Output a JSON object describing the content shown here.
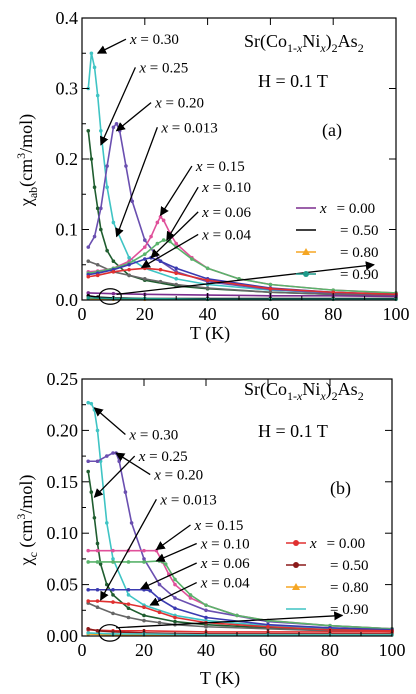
{
  "chart_data": [
    {
      "panel": "(a)",
      "type": "scatter",
      "formula": "Sr(Co1-xNix)2As2",
      "field": "H = 0.1 T",
      "xlabel": "T (K)",
      "ylabel": "χab(cm3/mol)",
      "xlim": [
        0,
        100
      ],
      "ylim": [
        0,
        0.4
      ],
      "xticks": [
        0,
        20,
        40,
        60,
        80,
        100
      ],
      "yticks": [
        0.0,
        0.1,
        0.2,
        0.3,
        0.4
      ],
      "yticklabels": [
        "0.0",
        "0.1",
        "0.2",
        "0.3",
        "0.4"
      ],
      "grid": false,
      "legend_position": "right",
      "legend": [
        {
          "label": "x  = 0.00",
          "color": "#7b2d8e",
          "marker": "line"
        },
        {
          "label": "= 0.50",
          "color": "#000000",
          "marker": "line"
        },
        {
          "label": "= 0.80",
          "color": "#f5a623",
          "marker": "triangle"
        },
        {
          "label": "= 0.90",
          "color": "#1e9a8a",
          "marker": "circle"
        }
      ],
      "series": [
        {
          "name": "x = 0.30",
          "color": "#3fc4c4",
          "x": [
            2,
            3,
            4,
            5,
            6,
            8,
            10,
            15,
            20,
            30,
            40,
            60,
            80,
            100
          ],
          "y": [
            0.3,
            0.35,
            0.33,
            0.29,
            0.24,
            0.16,
            0.11,
            0.06,
            0.045,
            0.03,
            0.022,
            0.014,
            0.01,
            0.008
          ]
        },
        {
          "name": "x = 0.25",
          "color": "#1f5d2f",
          "x": [
            2,
            3,
            4,
            5,
            6,
            8,
            10,
            15,
            20,
            30,
            40,
            60,
            80,
            100
          ],
          "y": [
            0.24,
            0.2,
            0.16,
            0.13,
            0.1,
            0.07,
            0.055,
            0.035,
            0.028,
            0.02,
            0.016,
            0.011,
            0.008,
            0.006
          ]
        },
        {
          "name": "x = 0.20",
          "color": "#6a4fb0",
          "x": [
            2,
            4,
            6,
            8,
            10,
            11,
            12,
            14,
            16,
            20,
            25,
            30,
            40,
            60,
            80,
            100
          ],
          "y": [
            0.075,
            0.09,
            0.13,
            0.19,
            0.245,
            0.25,
            0.24,
            0.19,
            0.14,
            0.085,
            0.055,
            0.04,
            0.026,
            0.015,
            0.01,
            0.008
          ]
        },
        {
          "name": "x = 0.013",
          "color": "#666666",
          "x": [
            2,
            5,
            10,
            15,
            20,
            25,
            30,
            40,
            60,
            80,
            100
          ],
          "y": [
            0.055,
            0.05,
            0.04,
            0.035,
            0.03,
            0.026,
            0.022,
            0.017,
            0.011,
            0.008,
            0.006
          ]
        },
        {
          "name": "x = 0.15",
          "color": "#e0509a",
          "x": [
            2,
            5,
            10,
            15,
            20,
            22,
            24,
            25,
            26,
            28,
            30,
            35,
            40,
            50,
            60,
            80,
            100
          ],
          "y": [
            0.04,
            0.041,
            0.045,
            0.055,
            0.075,
            0.09,
            0.11,
            0.118,
            0.113,
            0.095,
            0.08,
            0.06,
            0.045,
            0.03,
            0.022,
            0.014,
            0.01
          ]
        },
        {
          "name": "x = 0.10",
          "color": "#59b36b",
          "x": [
            2,
            5,
            10,
            15,
            20,
            24,
            26,
            28,
            30,
            35,
            40,
            50,
            60,
            80,
            100
          ],
          "y": [
            0.038,
            0.04,
            0.045,
            0.052,
            0.065,
            0.08,
            0.085,
            0.083,
            0.075,
            0.058,
            0.045,
            0.03,
            0.022,
            0.014,
            0.01
          ]
        },
        {
          "name": "x = 0.06",
          "color": "#3a3ab0",
          "x": [
            2,
            5,
            10,
            15,
            20,
            22,
            25,
            30,
            40,
            60,
            80,
            100
          ],
          "y": [
            0.036,
            0.038,
            0.043,
            0.05,
            0.058,
            0.06,
            0.055,
            0.045,
            0.03,
            0.017,
            0.011,
            0.008
          ]
        },
        {
          "name": "x = 0.04",
          "color": "#e03030",
          "x": [
            2,
            5,
            10,
            15,
            20,
            25,
            30,
            40,
            60,
            80,
            100
          ],
          "y": [
            0.033,
            0.035,
            0.04,
            0.043,
            0.045,
            0.043,
            0.038,
            0.028,
            0.016,
            0.011,
            0.008
          ]
        },
        {
          "name": "x = 0.00",
          "color": "#7b2d8e",
          "x": [
            2,
            10,
            20,
            40,
            60,
            80,
            100
          ],
          "y": [
            0.01,
            0.009,
            0.008,
            0.007,
            0.006,
            0.006,
            0.005
          ]
        },
        {
          "name": "x = 0.50",
          "color": "#000000",
          "x": [
            2,
            5,
            10,
            20,
            40,
            60,
            80,
            100
          ],
          "y": [
            0.006,
            0.004,
            0.003,
            0.002,
            0.002,
            0.002,
            0.002,
            0.002
          ]
        },
        {
          "name": "x = 0.80",
          "color": "#f5a623",
          "x": [
            2,
            10,
            20,
            40,
            60,
            80,
            100
          ],
          "y": [
            0.002,
            0.001,
            0.001,
            0.001,
            0.001,
            0.001,
            0.001
          ]
        },
        {
          "name": "x = 0.90",
          "color": "#1e9a8a",
          "x": [
            2,
            10,
            20,
            40,
            60,
            80,
            100
          ],
          "y": [
            0.003,
            0.002,
            0.002,
            0.001,
            0.001,
            0.001,
            0.001
          ]
        }
      ],
      "annotations": [
        {
          "label": "x = 0.30",
          "tail": [
            14,
            0.37
          ],
          "head": [
            5,
            0.35
          ]
        },
        {
          "label": "x = 0.25",
          "tail": [
            17,
            0.33
          ],
          "head": [
            6,
            0.22
          ]
        },
        {
          "label": "x = 0.20",
          "tail": [
            22,
            0.28
          ],
          "head": [
            11,
            0.24
          ]
        },
        {
          "label": "x = 0.013",
          "tail": [
            24,
            0.245
          ],
          "head": [
            11,
            0.09
          ]
        },
        {
          "label": "x = 0.15",
          "tail": [
            35,
            0.19
          ],
          "head": [
            25,
            0.12
          ]
        },
        {
          "label": "x = 0.10",
          "tail": [
            37,
            0.16
          ],
          "head": [
            27,
            0.085
          ]
        },
        {
          "label": "x = 0.06",
          "tail": [
            37,
            0.125
          ],
          "head": [
            22,
            0.06
          ]
        },
        {
          "label": "x = 0.04",
          "tail": [
            37,
            0.093
          ],
          "head": [
            19,
            0.046
          ]
        },
        {
          "label": "",
          "tail": [
            11,
            0.008
          ],
          "head": [
            93,
            0.05
          ]
        }
      ],
      "ellipse": {
        "cx": 9,
        "cy": 0.005,
        "rx": 3.5,
        "ry": 0.011
      }
    },
    {
      "panel": "(b)",
      "type": "scatter",
      "formula": "Sr(Co1-xNix)2As2",
      "field": "H = 0.1 T",
      "xlabel": "T (K)",
      "ylabel": "χc (cm3/mol)",
      "xlim": [
        0,
        100
      ],
      "ylim": [
        0,
        0.25
      ],
      "xticks": [
        0,
        20,
        40,
        60,
        80,
        100
      ],
      "yticks": [
        0.0,
        0.05,
        0.1,
        0.15,
        0.2,
        0.25
      ],
      "yticklabels": [
        "0.00",
        "0.05",
        "0.10",
        "0.15",
        "0.20",
        "0.25"
      ],
      "grid": false,
      "legend_position": "bottom-right",
      "legend": [
        {
          "label": "x  = 0.00",
          "color": "#e03030",
          "marker": "circle"
        },
        {
          "label": "= 0.50",
          "color": "#8b1a1a",
          "marker": "circle"
        },
        {
          "label": "= 0.80",
          "color": "#f5a623",
          "marker": "triangle"
        },
        {
          "label": "= 0.90",
          "color": "#3fc4c4",
          "marker": "line"
        }
      ],
      "series": [
        {
          "name": "x = 0.30",
          "color": "#3fc4c4",
          "x": [
            2,
            3,
            4,
            5,
            6,
            8,
            10,
            15,
            20,
            30,
            40,
            60,
            80,
            100
          ],
          "y": [
            0.227,
            0.226,
            0.22,
            0.2,
            0.17,
            0.11,
            0.075,
            0.04,
            0.03,
            0.02,
            0.015,
            0.01,
            0.007,
            0.005
          ]
        },
        {
          "name": "x = 0.25",
          "color": "#1f5d2f",
          "x": [
            2,
            3,
            4,
            5,
            6,
            8,
            10,
            15,
            20,
            30,
            40,
            60,
            80,
            100
          ],
          "y": [
            0.16,
            0.14,
            0.115,
            0.09,
            0.07,
            0.05,
            0.04,
            0.027,
            0.02,
            0.014,
            0.011,
            0.008,
            0.006,
            0.005
          ]
        },
        {
          "name": "x = 0.20",
          "color": "#6a4fb0",
          "x": [
            2,
            5,
            8,
            10,
            11,
            12,
            14,
            16,
            20,
            25,
            30,
            40,
            60,
            80,
            100
          ],
          "y": [
            0.17,
            0.17,
            0.175,
            0.178,
            0.178,
            0.17,
            0.14,
            0.11,
            0.075,
            0.05,
            0.037,
            0.025,
            0.014,
            0.01,
            0.007
          ]
        },
        {
          "name": "x = 0.013",
          "color": "#666666",
          "x": [
            2,
            5,
            10,
            15,
            20,
            25,
            30,
            40,
            60,
            80,
            100
          ],
          "y": [
            0.032,
            0.028,
            0.022,
            0.018,
            0.015,
            0.013,
            0.011,
            0.009,
            0.007,
            0.005,
            0.004
          ]
        },
        {
          "name": "x = 0.15",
          "color": "#e0509a",
          "x": [
            2,
            5,
            10,
            15,
            20,
            24,
            26,
            28,
            30,
            35,
            40,
            50,
            60,
            80,
            100
          ],
          "y": [
            0.083,
            0.083,
            0.083,
            0.083,
            0.083,
            0.083,
            0.072,
            0.06,
            0.05,
            0.037,
            0.03,
            0.02,
            0.015,
            0.01,
            0.007
          ]
        },
        {
          "name": "x = 0.10",
          "color": "#59b36b",
          "x": [
            2,
            5,
            10,
            15,
            20,
            25,
            27,
            30,
            35,
            40,
            50,
            60,
            80,
            100
          ],
          "y": [
            0.072,
            0.072,
            0.072,
            0.072,
            0.072,
            0.073,
            0.07,
            0.055,
            0.04,
            0.03,
            0.02,
            0.015,
            0.01,
            0.007
          ]
        },
        {
          "name": "x = 0.06",
          "color": "#3a3ab0",
          "x": [
            2,
            5,
            10,
            15,
            20,
            22,
            25,
            30,
            40,
            60,
            80,
            100
          ],
          "y": [
            0.045,
            0.045,
            0.045,
            0.045,
            0.045,
            0.044,
            0.036,
            0.027,
            0.018,
            0.011,
            0.008,
            0.006
          ]
        },
        {
          "name": "x = 0.04",
          "color": "#e03030",
          "x": [
            2,
            5,
            10,
            15,
            20,
            25,
            30,
            40,
            60,
            80,
            100
          ],
          "y": [
            0.034,
            0.034,
            0.033,
            0.031,
            0.028,
            0.023,
            0.018,
            0.013,
            0.009,
            0.006,
            0.005
          ]
        },
        {
          "name": "x = 0.00",
          "color": "#e03030",
          "x": [
            2,
            10,
            20,
            40,
            60,
            80,
            100
          ],
          "y": [
            0.006,
            0.005,
            0.005,
            0.004,
            0.004,
            0.004,
            0.004
          ]
        },
        {
          "name": "x = 0.50",
          "color": "#8b1a1a",
          "x": [
            2,
            5,
            10,
            20,
            40,
            60,
            80,
            100
          ],
          "y": [
            0.007,
            0.005,
            0.004,
            0.003,
            0.002,
            0.002,
            0.002,
            0.002
          ]
        },
        {
          "name": "x = 0.80",
          "color": "#f5a623",
          "x": [
            2,
            10,
            20,
            40,
            60,
            80,
            100
          ],
          "y": [
            0.002,
            0.001,
            0.001,
            0.001,
            0.001,
            0.001,
            0.001
          ]
        },
        {
          "name": "x = 0.90",
          "color": "#3fc4c4",
          "x": [
            2,
            10,
            20,
            40,
            60,
            80,
            100
          ],
          "y": [
            0.003,
            0.002,
            0.002,
            0.001,
            0.001,
            0.001,
            0.001
          ]
        }
      ],
      "annotations": [
        {
          "label": "x = 0.30",
          "tail": [
            14,
            0.196
          ],
          "head": [
            4,
            0.222
          ]
        },
        {
          "label": "x = 0.25",
          "tail": [
            17,
            0.175
          ],
          "head": [
            4,
            0.135
          ]
        },
        {
          "label": "x = 0.20",
          "tail": [
            22,
            0.157
          ],
          "head": [
            11,
            0.178
          ]
        },
        {
          "label": "x = 0.013",
          "tail": [
            24,
            0.133
          ],
          "head": [
            6,
            0.035
          ]
        },
        {
          "label": "x = 0.15",
          "tail": [
            35,
            0.108
          ],
          "head": [
            24,
            0.084
          ]
        },
        {
          "label": "x = 0.10",
          "tail": [
            37,
            0.09
          ],
          "head": [
            24,
            0.073
          ]
        },
        {
          "label": "x = 0.06",
          "tail": [
            37,
            0.071
          ],
          "head": [
            19,
            0.046
          ]
        },
        {
          "label": "x = 0.04",
          "tail": [
            37,
            0.052
          ],
          "head": [
            22,
            0.03
          ]
        },
        {
          "label": "",
          "tail": [
            11,
            0.008
          ],
          "head": [
            84,
            0.02
          ]
        }
      ],
      "ellipse": {
        "cx": 9,
        "cy": 0.003,
        "rx": 3.5,
        "ry": 0.008
      }
    }
  ]
}
